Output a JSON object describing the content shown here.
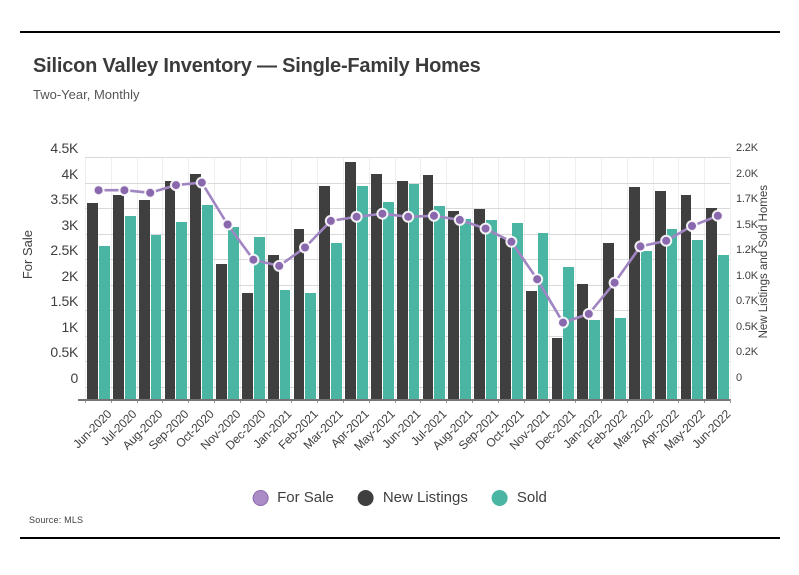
{
  "page": {
    "title": "Silicon Valley Inventory — Single-Family Homes",
    "subtitle": "Two-Year, Monthly",
    "source": "Source:  MLS"
  },
  "legend": {
    "items": [
      {
        "label": "For Sale",
        "series": "For Sale"
      },
      {
        "label": "New Listings",
        "series": "New Listings"
      },
      {
        "label": "Sold",
        "series": "Sold"
      }
    ]
  },
  "chart_data": {
    "type": "bar",
    "subtype": "dual-axis combo: grouped bars (right axis) + line with dots (left axis)",
    "title": "Silicon Valley Inventory — Single-Family Homes",
    "subtitle": "Two-Year, Monthly",
    "units": "thousands of homes (K)",
    "categories": [
      "Jun-2020",
      "Jul-2020",
      "Aug-2020",
      "Sep-2020",
      "Oct-2020",
      "Nov-2020",
      "Dec-2020",
      "Jan-2021",
      "Feb-2021",
      "Mar-2021",
      "Apr-2021",
      "May-2021",
      "Jun-2021",
      "Jul-2021",
      "Aug-2021",
      "Sep-2021",
      "Oct-2021",
      "Nov-2021",
      "Dec-2021",
      "Jan-2022",
      "Feb-2022",
      "Mar-2022",
      "Apr-2022",
      "May-2022",
      "Jun-2022"
    ],
    "series": [
      {
        "name": "For Sale",
        "type": "line",
        "axis": "left",
        "color": "#a185c2",
        "dot_color": "#8a68ad",
        "dot_ring": "#ffffff",
        "values": [
          3.85,
          3.85,
          3.8,
          3.95,
          4.0,
          3.18,
          2.49,
          2.37,
          2.73,
          3.25,
          3.33,
          3.39,
          3.33,
          3.35,
          3.27,
          3.1,
          2.84,
          2.11,
          1.26,
          1.43,
          2.04,
          2.75,
          2.86,
          3.15,
          3.35
        ]
      },
      {
        "name": "New Listings",
        "type": "bar",
        "axis": "right",
        "color": "#3f3f3f",
        "values": [
          1.76,
          1.84,
          1.79,
          1.97,
          2.04,
          1.18,
          0.9,
          1.26,
          1.51,
          1.92,
          2.15,
          2.04,
          1.97,
          2.03,
          1.68,
          1.7,
          1.43,
          0.92,
          0.47,
          0.99,
          1.38,
          1.91,
          1.88,
          1.84,
          1.71
        ]
      },
      {
        "name": "Sold",
        "type": "bar",
        "axis": "right",
        "color": "#4ab5a2",
        "values": [
          1.35,
          1.64,
          1.45,
          1.58,
          1.74,
          1.53,
          1.44,
          0.93,
          0.9,
          1.38,
          1.92,
          1.77,
          1.94,
          1.73,
          1.61,
          1.6,
          1.57,
          1.47,
          1.15,
          0.64,
          0.66,
          1.3,
          1.51,
          1.41,
          1.26
        ]
      }
    ],
    "axes": {
      "left": {
        "title": "For Sale",
        "min": 0,
        "max": 4.5,
        "tick_values": [
          4.5,
          4.0,
          3.5,
          3.0,
          2.5,
          2.0,
          1.5,
          1.0,
          0.5,
          0
        ],
        "tick_labels": [
          "4.5K",
          "4K",
          "3.5K",
          "3K",
          "2.5K",
          "2K",
          "1.5K",
          "1K",
          "0.5K",
          "0"
        ]
      },
      "right": {
        "title": "New Listings and Sold Homes",
        "min": 0,
        "max": 2.2,
        "tick_labels": [
          "2.2K",
          "2.0K",
          "1.7K",
          "1.5K",
          "1.2K",
          "1.0K",
          "0.7K",
          "0.5K",
          "0.2K",
          "0"
        ]
      }
    },
    "grid": {
      "horizontal": true,
      "vertical_month_separators": true
    },
    "legend_position": "bottom center",
    "source": "Source: MLS"
  }
}
